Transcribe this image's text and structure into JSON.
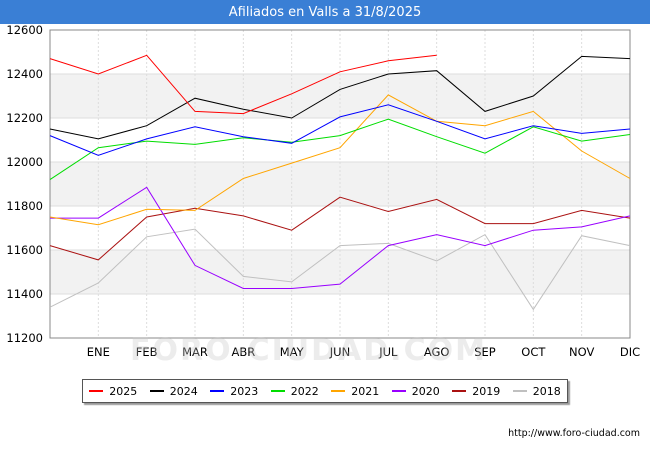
{
  "chart_data": {
    "type": "line",
    "title": "Afiliados en Valls a 31/8/2025",
    "categories": [
      "",
      "ENE",
      "FEB",
      "MAR",
      "ABR",
      "MAY",
      "JUN",
      "JUL",
      "AGO",
      "SEP",
      "OCT",
      "NOV",
      "DIC"
    ],
    "ylim": [
      11200,
      12600
    ],
    "yticks": [
      11200,
      11400,
      11600,
      11800,
      12000,
      12200,
      12400,
      12600
    ],
    "grid": true,
    "legend_position": "bottom",
    "series": [
      {
        "name": "2025",
        "color": "#ff0000",
        "values": [
          12470,
          12400,
          12485,
          12230,
          12220,
          12310,
          12410,
          12460,
          12485,
          null,
          null,
          null,
          null
        ]
      },
      {
        "name": "2024",
        "color": "#000000",
        "values": [
          12150,
          12105,
          12165,
          12290,
          12240,
          12200,
          12330,
          12400,
          12415,
          12230,
          12300,
          12480,
          12470
        ]
      },
      {
        "name": "2023",
        "color": "#0000ff",
        "values": [
          12120,
          12030,
          12105,
          12160,
          12115,
          12085,
          12205,
          12260,
          12185,
          12105,
          12165,
          12130,
          12150
        ]
      },
      {
        "name": "2022",
        "color": "#00dd00",
        "values": [
          11920,
          12065,
          12095,
          12080,
          12110,
          12090,
          12120,
          12195,
          12115,
          12040,
          12160,
          12095,
          12125
        ]
      },
      {
        "name": "2021",
        "color": "#ffa500",
        "values": [
          11750,
          11715,
          11785,
          11780,
          11925,
          11995,
          12065,
          12305,
          12185,
          12165,
          12230,
          12050,
          11925
        ]
      },
      {
        "name": "2020",
        "color": "#9900ff",
        "values": [
          11745,
          11745,
          11885,
          11530,
          11425,
          11425,
          11445,
          11620,
          11670,
          11620,
          11690,
          11705,
          11755
        ]
      },
      {
        "name": "2019",
        "color": "#aa1111",
        "values": [
          11620,
          11555,
          11750,
          11790,
          11755,
          11690,
          11840,
          11775,
          11830,
          11720,
          11720,
          11780,
          11745
        ]
      },
      {
        "name": "2018",
        "color": "#c0c0c0",
        "values": [
          11340,
          11450,
          11660,
          11695,
          11480,
          11455,
          11620,
          11630,
          11550,
          11670,
          11330,
          11665,
          11620
        ]
      }
    ]
  },
  "watermark": "FORO-CIUDAD.COM",
  "footer": {
    "url": "http://www.foro-ciudad.com"
  }
}
